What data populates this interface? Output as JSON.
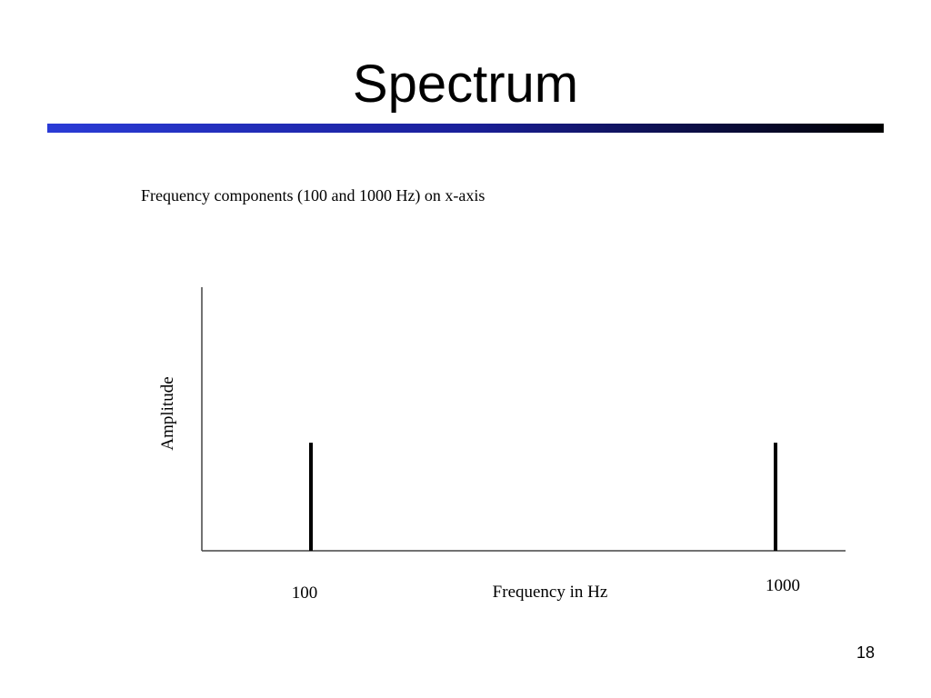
{
  "slide": {
    "title": "Spectrum",
    "page_number": "18"
  },
  "chart_data": {
    "type": "stem",
    "annotation": "Frequency components (100 and 1000 Hz) on x-axis",
    "x_label": "Frequency in Hz",
    "y_label": "Amplitude",
    "categories": [
      "100",
      "1000"
    ],
    "values": [
      0.41,
      0.41
    ],
    "color": "#000000",
    "ylim": [
      0,
      1
    ]
  }
}
